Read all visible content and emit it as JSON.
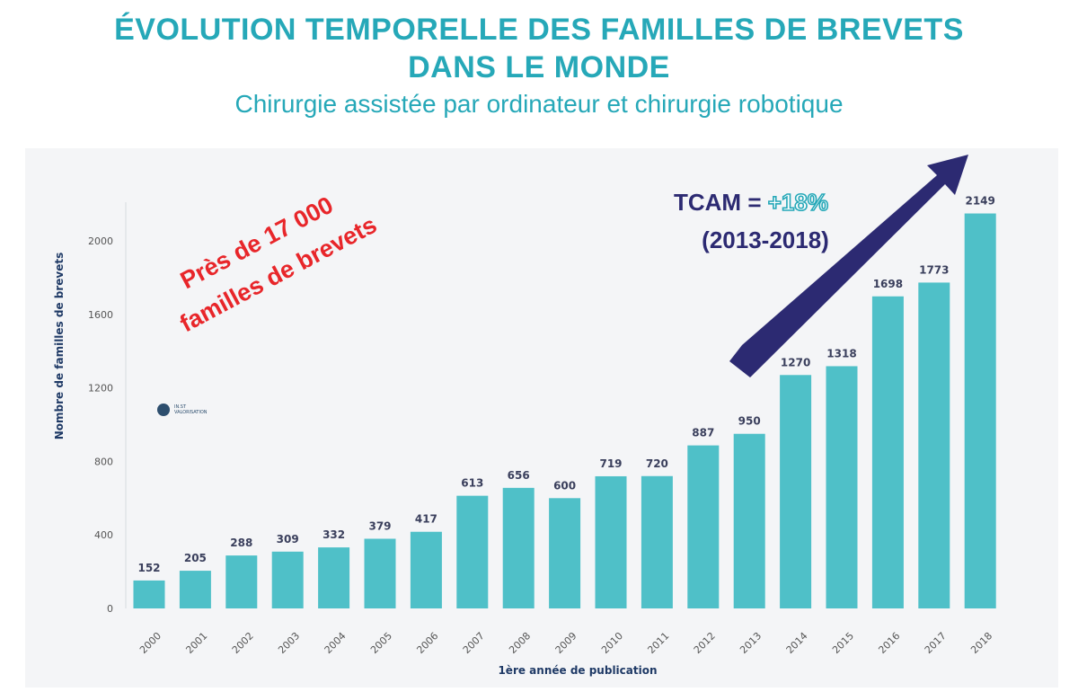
{
  "header": {
    "title_line1": "ÉVOLUTION TEMPORELLE DES FAMILLES DE BREVETS",
    "title_line2": "DANS LE MONDE",
    "subtitle": "Chirurgie assistée par ordinateur et chirurgie robotique"
  },
  "annotations": {
    "stamp_line1": "Près de 17 000",
    "stamp_line2": "familles de brevets",
    "tcam_prefix": "TCAM = ",
    "tcam_value": "+18%",
    "tcam_period": "(2013-2018)"
  },
  "logo": {
    "name": "IN.ST",
    "text": "VALORISATION"
  },
  "colors": {
    "bar": "#4fc0c8",
    "accent": "#26a8b8",
    "axis_text": "#1f3a66",
    "stamp": "#e8262a",
    "arrow": "#2c2a72"
  },
  "chart_data": {
    "type": "bar",
    "title": "ÉVOLUTION TEMPORELLE DES FAMILLES DE BREVETS DANS LE MONDE",
    "subtitle": "Chirurgie assistée par ordinateur et chirurgie robotique",
    "xlabel": "1ère année de publication",
    "ylabel": "Nombre de familles de brevets",
    "categories": [
      "2000",
      "2001",
      "2002",
      "2003",
      "2004",
      "2005",
      "2006",
      "2007",
      "2008",
      "2009",
      "2010",
      "2011",
      "2012",
      "2013",
      "2014",
      "2015",
      "2016",
      "2017",
      "2018"
    ],
    "values": [
      152,
      205,
      288,
      309,
      332,
      379,
      417,
      613,
      656,
      600,
      719,
      720,
      887,
      950,
      1270,
      1318,
      1698,
      1773,
      2149
    ],
    "yticks": [
      0,
      400,
      800,
      1200,
      1600,
      2000
    ],
    "ylim": [
      0,
      2200
    ]
  }
}
